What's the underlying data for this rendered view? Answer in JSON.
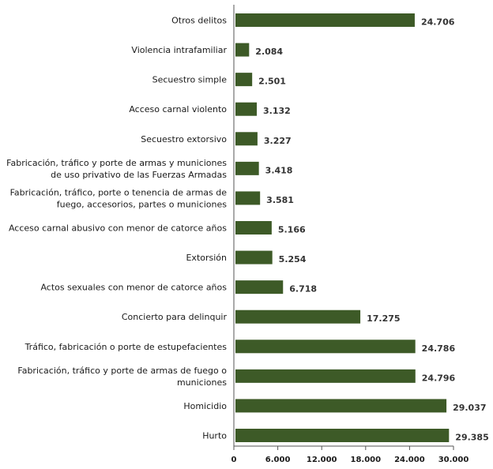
{
  "chart_data": {
    "type": "bar",
    "orientation": "horizontal",
    "categories": [
      [
        "Otros delitos"
      ],
      [
        "Violencia intrafamiliar"
      ],
      [
        "Secuestro simple"
      ],
      [
        "Acceso carnal violento"
      ],
      [
        "Secuestro extorsivo"
      ],
      [
        "Fabricación, tráfico y porte de armas y municiones",
        "de uso privativo de las Fuerzas Armadas"
      ],
      [
        "Fabricación, tráfico, porte o tenencia de armas de",
        "fuego, accesorios, partes o municiones"
      ],
      [
        "Acceso carnal abusivo con menor de catorce años"
      ],
      [
        "Extorsión"
      ],
      [
        "Actos sexuales con menor de catorce años"
      ],
      [
        "Concierto para delinquir"
      ],
      [
        "Tráfico, fabricación o porte de estupefacientes"
      ],
      [
        "Fabricación, tráfico y porte de armas de fuego o",
        "municiones"
      ],
      [
        "Homicidio"
      ],
      [
        "Hurto"
      ]
    ],
    "values": [
      24706,
      2084,
      2501,
      3132,
      3227,
      3418,
      3581,
      5166,
      5254,
      6718,
      17275,
      24786,
      24796,
      29037,
      29385
    ],
    "value_labels": [
      "24.706",
      "2.084",
      "2.501",
      "3.132",
      "3.227",
      "3.418",
      "3.581",
      "5.166",
      "5.254",
      "6.718",
      "17.275",
      "24.786",
      "24.796",
      "29.037",
      "29.385"
    ],
    "xlim": [
      0,
      30000
    ],
    "xticks": [
      0,
      6000,
      12000,
      18000,
      24000,
      30000
    ],
    "xtick_labels": [
      "0",
      "6.000",
      "12.000",
      "18.000",
      "24.000",
      "30.000"
    ],
    "bar_color": "#3d5a27",
    "grid": false,
    "legend": false
  }
}
